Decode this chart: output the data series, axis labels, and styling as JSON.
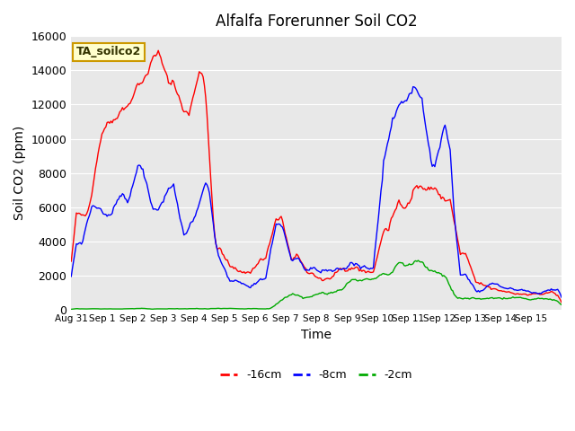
{
  "title": "Alfalfa Forerunner Soil CO2",
  "xlabel": "Time",
  "ylabel": "Soil CO2 (ppm)",
  "annotation": "TA_soilco2",
  "ylim": [
    0,
    16000
  ],
  "yticks": [
    0,
    2000,
    4000,
    6000,
    8000,
    10000,
    12000,
    14000,
    16000
  ],
  "xtick_labels": [
    "Aug 31",
    "Sep 1",
    "Sep 2",
    "Sep 3",
    "Sep 4",
    "Sep 5",
    "Sep 6",
    "Sep 7",
    "Sep 8",
    "Sep 9",
    "Sep 10",
    "Sep 11",
    "Sep 12",
    "Sep 13",
    "Sep 14",
    "Sep 15"
  ],
  "line_colors": [
    "#ff0000",
    "#0000ff",
    "#00aa00"
  ],
  "line_labels": [
    "-16cm",
    "-8cm",
    "-2cm"
  ],
  "bg_color": "#e8e8e8",
  "legend_bg": "#ffffcc",
  "legend_edge": "#cc9900"
}
